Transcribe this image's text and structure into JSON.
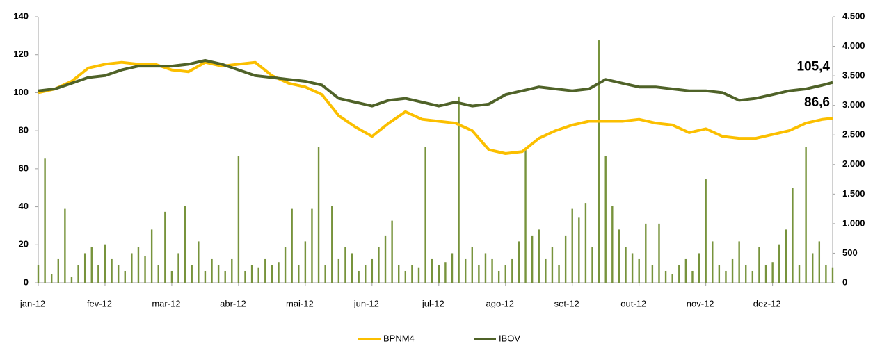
{
  "chart_data": {
    "type": "line",
    "x": [
      0,
      0.25,
      0.5,
      0.75,
      1,
      1.25,
      1.5,
      1.75,
      2,
      2.25,
      2.5,
      2.75,
      3,
      3.25,
      3.5,
      3.75,
      4,
      4.25,
      4.5,
      4.75,
      5,
      5.25,
      5.5,
      5.75,
      6,
      6.25,
      6.5,
      6.75,
      7,
      7.25,
      7.5,
      7.75,
      8,
      8.25,
      8.5,
      8.75,
      9,
      9.25,
      9.5,
      9.75,
      10,
      10.25,
      10.5,
      10.75,
      11,
      11.25,
      11.5,
      11.75,
      11.9
    ],
    "series": [
      {
        "name": "BPNM4",
        "color": "#fbbf00",
        "values": [
          100,
          102,
          106,
          113,
          115,
          116,
          115,
          115,
          112,
          111,
          116,
          114,
          115,
          116,
          109,
          105,
          103,
          99,
          88,
          82,
          77,
          84,
          90,
          86,
          85,
          84,
          80,
          70,
          68,
          69,
          76,
          80,
          83,
          85,
          85,
          85,
          86,
          84,
          83,
          79,
          81,
          77,
          76,
          76,
          78,
          80,
          84,
          86,
          86.6
        ],
        "value_labels": [
          null,
          null,
          null,
          null,
          null,
          null,
          null,
          null,
          null,
          null,
          null,
          null,
          null,
          null,
          null,
          null,
          null,
          null,
          null,
          null,
          null,
          null,
          null,
          null,
          null,
          null,
          null,
          null,
          null,
          null,
          null,
          null,
          null,
          null,
          null,
          null,
          null,
          null,
          null,
          null,
          null,
          null,
          null,
          null,
          null,
          null,
          null,
          null,
          "86,6"
        ]
      },
      {
        "name": "IBOV",
        "color": "#4f6228",
        "values": [
          101,
          102,
          105,
          108,
          109,
          112,
          114,
          114,
          114,
          115,
          117,
          115,
          112,
          109,
          108,
          107,
          106,
          104,
          97,
          95,
          93,
          96,
          97,
          95,
          93,
          95,
          93,
          94,
          99,
          101,
          103,
          102,
          101,
          102,
          107,
          105,
          103,
          103,
          102,
          101,
          101,
          100,
          96,
          97,
          99,
          101,
          102,
          104,
          105.4
        ],
        "value_labels": [
          null,
          null,
          null,
          null,
          null,
          null,
          null,
          null,
          null,
          null,
          null,
          null,
          null,
          null,
          null,
          null,
          null,
          null,
          null,
          null,
          null,
          null,
          null,
          null,
          null,
          null,
          null,
          null,
          null,
          null,
          null,
          null,
          null,
          null,
          null,
          null,
          null,
          null,
          null,
          null,
          null,
          null,
          null,
          null,
          null,
          null,
          null,
          null,
          "105,4"
        ]
      },
      {
        "type": "bar",
        "axis": "y2",
        "color": "#77933c",
        "x": [
          0,
          0.1,
          0.2,
          0.3,
          0.4,
          0.5,
          0.6,
          0.7,
          0.8,
          0.9,
          1,
          1.1,
          1.2,
          1.3,
          1.4,
          1.5,
          1.6,
          1.7,
          1.8,
          1.9,
          2,
          2.1,
          2.2,
          2.3,
          2.4,
          2.5,
          2.6,
          2.7,
          2.8,
          2.9,
          3,
          3.1,
          3.2,
          3.3,
          3.4,
          3.5,
          3.6,
          3.7,
          3.8,
          3.9,
          4,
          4.1,
          4.2,
          4.3,
          4.4,
          4.5,
          4.6,
          4.7,
          4.8,
          4.9,
          5,
          5.1,
          5.2,
          5.3,
          5.4,
          5.5,
          5.6,
          5.7,
          5.8,
          5.9,
          6,
          6.1,
          6.2,
          6.3,
          6.4,
          6.5,
          6.6,
          6.7,
          6.8,
          6.9,
          7,
          7.1,
          7.2,
          7.3,
          7.4,
          7.5,
          7.6,
          7.7,
          7.8,
          7.9,
          8,
          8.1,
          8.2,
          8.3,
          8.4,
          8.5,
          8.6,
          8.7,
          8.8,
          8.9,
          9,
          9.1,
          9.2,
          9.3,
          9.4,
          9.5,
          9.6,
          9.7,
          9.8,
          9.9,
          10,
          10.1,
          10.2,
          10.3,
          10.4,
          10.5,
          10.6,
          10.7,
          10.8,
          10.9,
          11,
          11.1,
          11.2,
          11.3,
          11.4,
          11.5,
          11.6,
          11.7,
          11.8,
          11.9
        ],
        "values": [
          300,
          2100,
          150,
          400,
          1250,
          100,
          300,
          500,
          600,
          300,
          650,
          400,
          300,
          200,
          500,
          600,
          450,
          900,
          300,
          1200,
          200,
          500,
          1300,
          300,
          700,
          200,
          400,
          300,
          200,
          400,
          2150,
          200,
          300,
          250,
          400,
          300,
          350,
          600,
          1250,
          300,
          700,
          1250,
          2300,
          300,
          1300,
          400,
          600,
          500,
          200,
          300,
          400,
          600,
          800,
          1050,
          300,
          200,
          300,
          250,
          2300,
          400,
          300,
          350,
          500,
          3150,
          400,
          600,
          300,
          500,
          400,
          200,
          300,
          400,
          700,
          2250,
          800,
          900,
          400,
          600,
          300,
          800,
          1250,
          1100,
          1350,
          600,
          4100,
          2150,
          1300,
          900,
          600,
          500,
          400,
          1000,
          300,
          1000,
          200,
          150,
          300,
          400,
          200,
          500,
          1750,
          700,
          300,
          200,
          400,
          700,
          300,
          200,
          600,
          300,
          350,
          650,
          900,
          1600,
          300,
          2300,
          500,
          700,
          300,
          250
        ]
      }
    ],
    "xlim": [
      0,
      11.9
    ],
    "xticks": [
      {
        "value": 0,
        "label": "jan-12"
      },
      {
        "value": 1,
        "label": "fev-12"
      },
      {
        "value": 2,
        "label": "mar-12"
      },
      {
        "value": 3,
        "label": "abr-12"
      },
      {
        "value": 4,
        "label": "mai-12"
      },
      {
        "value": 5,
        "label": "jun-12"
      },
      {
        "value": 6,
        "label": "jul-12"
      },
      {
        "value": 7,
        "label": "ago-12"
      },
      {
        "value": 8,
        "label": "set-12"
      },
      {
        "value": 9,
        "label": "out-12"
      },
      {
        "value": 10,
        "label": "nov-12"
      },
      {
        "value": 11,
        "label": "dez-12"
      }
    ],
    "ylim": [
      0,
      140
    ],
    "yticks": [
      0,
      20,
      40,
      60,
      80,
      100,
      120,
      140
    ],
    "y2lim": [
      0,
      4500
    ],
    "y2ticks": [
      0,
      500,
      {
        "value": 1000,
        "label": "1.000"
      },
      {
        "value": 1500,
        "label": "1.500"
      },
      {
        "value": 2000,
        "label": "2.000"
      },
      {
        "value": 2500,
        "label": "2.500"
      },
      {
        "value": 3000,
        "label": "3.000"
      },
      {
        "value": 3500,
        "label": "3.500"
      },
      {
        "value": 4000,
        "label": "4.000"
      },
      {
        "value": 4500,
        "label": "4.500"
      }
    ],
    "legend": "bottom"
  }
}
